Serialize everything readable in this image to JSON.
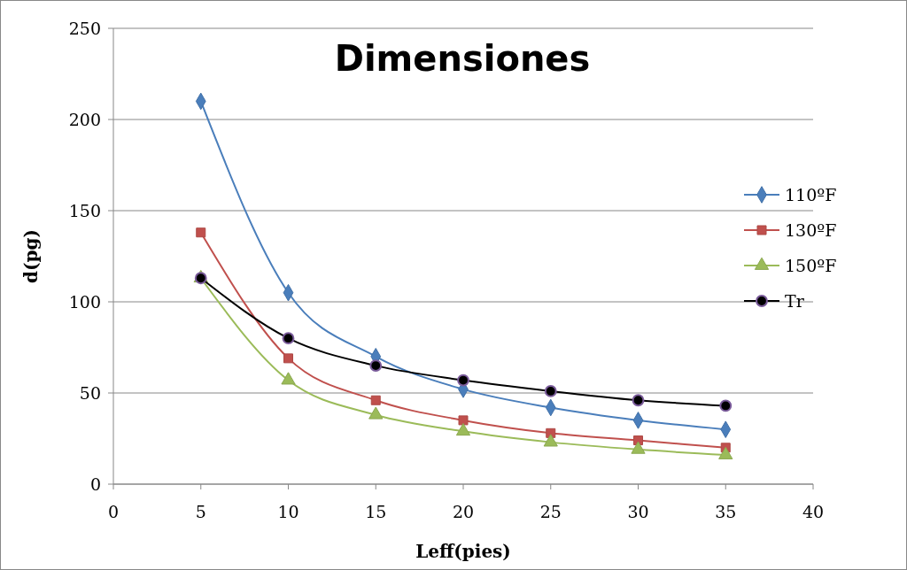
{
  "chart_data": {
    "type": "line",
    "title": "Dimensiones",
    "xlabel": "Leff(pies)",
    "ylabel": "d(pg)",
    "x": [
      5,
      10,
      15,
      20,
      25,
      30,
      35
    ],
    "xlim": [
      0,
      40
    ],
    "xticks": [
      0,
      5,
      10,
      15,
      20,
      25,
      30,
      35,
      40
    ],
    "ylim": [
      0,
      250
    ],
    "yticks": [
      0,
      50,
      100,
      150,
      200,
      250
    ],
    "grid": "y",
    "legend": "right",
    "line_style": "solid",
    "series": [
      {
        "name": "110ºF",
        "color": "#4a7ebb",
        "marker": "diamond",
        "values": [
          210,
          105,
          70,
          52,
          42,
          35,
          30
        ]
      },
      {
        "name": "130ºF",
        "color": "#c0504d",
        "marker": "square",
        "values": [
          138,
          69,
          46,
          35,
          28,
          24,
          20
        ]
      },
      {
        "name": "150ºF",
        "color": "#9bbb59",
        "marker": "triangle",
        "values": [
          113,
          57,
          38,
          29,
          23,
          19,
          16
        ]
      },
      {
        "name": "Tr",
        "color": "#000000",
        "marker": "circle",
        "values": [
          113,
          80,
          65,
          57,
          51,
          46,
          43
        ]
      }
    ]
  }
}
